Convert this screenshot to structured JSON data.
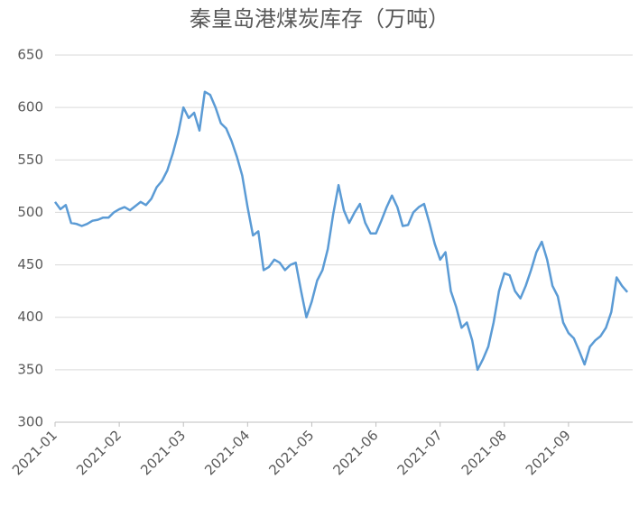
{
  "chart_data": {
    "type": "line",
    "title": "秦皇岛港煤炭库存（万吨）",
    "categories": [
      "2021-01",
      null,
      null,
      null,
      null,
      null,
      null,
      null,
      null,
      null,
      null,
      null,
      "2021-02",
      null,
      null,
      null,
      null,
      null,
      null,
      null,
      null,
      null,
      null,
      null,
      "2021-03",
      null,
      null,
      null,
      null,
      null,
      null,
      null,
      null,
      null,
      null,
      null,
      "2021-04",
      null,
      null,
      null,
      null,
      null,
      null,
      null,
      null,
      null,
      null,
      null,
      "2021-05",
      null,
      null,
      null,
      null,
      null,
      null,
      null,
      null,
      null,
      null,
      null,
      "2021-06",
      null,
      null,
      null,
      null,
      null,
      null,
      null,
      null,
      null,
      null,
      null,
      "2021-07",
      null,
      null,
      null,
      null,
      null,
      null,
      null,
      null,
      null,
      null,
      null,
      "2021-08",
      null,
      null,
      null,
      null,
      null,
      null,
      null,
      null,
      null,
      null,
      null,
      "2021-09",
      null,
      null,
      null,
      null,
      null,
      null,
      null,
      null,
      null,
      null,
      null
    ],
    "values": [
      510,
      503,
      507,
      490,
      489,
      487,
      489,
      492,
      493,
      495,
      495,
      500,
      503,
      505,
      502,
      506,
      510,
      507,
      513,
      524,
      530,
      540,
      556,
      575,
      600,
      590,
      595,
      578,
      615,
      612,
      600,
      585,
      580,
      568,
      553,
      535,
      505,
      478,
      482,
      445,
      448,
      455,
      452,
      445,
      450,
      452,
      425,
      400,
      415,
      435,
      445,
      465,
      498,
      526,
      502,
      490,
      500,
      508,
      490,
      480,
      480,
      492,
      505,
      516,
      505,
      487,
      488,
      500,
      505,
      508,
      490,
      470,
      455,
      462,
      425,
      410,
      390,
      395,
      378,
      350,
      360,
      372,
      395,
      425,
      442,
      440,
      425,
      418,
      430,
      445,
      462,
      472,
      455,
      430,
      420,
      395,
      385,
      380,
      368,
      355,
      372,
      378,
      382,
      390,
      405,
      438,
      430,
      424
    ],
    "color": "#5b9bd5",
    "ylim": [
      300,
      650
    ],
    "yticks": [
      300,
      350,
      400,
      450,
      500,
      550,
      600,
      650
    ],
    "grid": true
  }
}
